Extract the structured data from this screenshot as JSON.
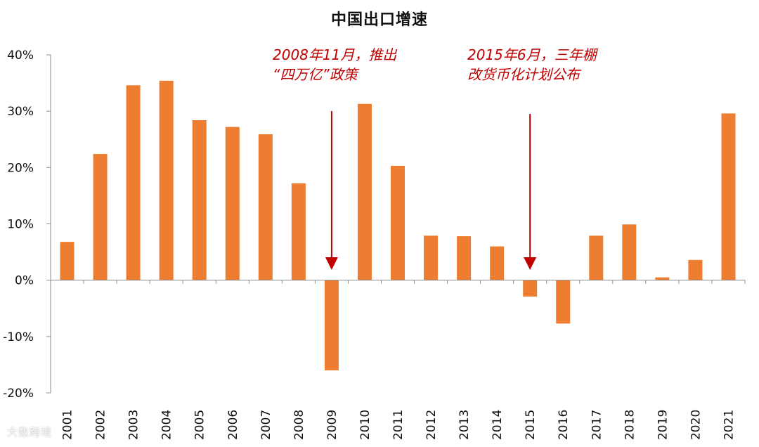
{
  "chart_data": {
    "type": "bar",
    "title": "中国出口增速",
    "categories": [
      "2001",
      "2002",
      "2003",
      "2004",
      "2005",
      "2006",
      "2007",
      "2008",
      "2009",
      "2010",
      "2011",
      "2012",
      "2013",
      "2014",
      "2015",
      "2016",
      "2017",
      "2018",
      "2019",
      "2020",
      "2021"
    ],
    "values": [
      6.8,
      22.4,
      34.6,
      35.4,
      28.4,
      27.2,
      25.9,
      17.2,
      -16.0,
      31.3,
      20.3,
      7.9,
      7.8,
      6.0,
      -2.9,
      -7.7,
      7.9,
      9.9,
      0.5,
      3.6,
      29.6
    ],
    "value_unit": "%",
    "ylim": [
      -20,
      40
    ],
    "y_ticks": [
      -20,
      -10,
      0,
      10,
      20,
      30,
      40
    ],
    "y_tick_labels": [
      "-20%",
      "-10%",
      "0%",
      "10%",
      "20%",
      "30%",
      "40%"
    ],
    "bar_color": "#ED7D31",
    "grid": false,
    "annotations": [
      {
        "category": "2009",
        "lines": [
          "2008年11月，推出",
          "“四万亿”政策"
        ],
        "color": "#C00000"
      },
      {
        "category": "2015",
        "lines": [
          "2015年6月，三年棚",
          "改货币化计划公布"
        ],
        "color": "#C00000"
      }
    ]
  },
  "watermark": "大数跨境"
}
